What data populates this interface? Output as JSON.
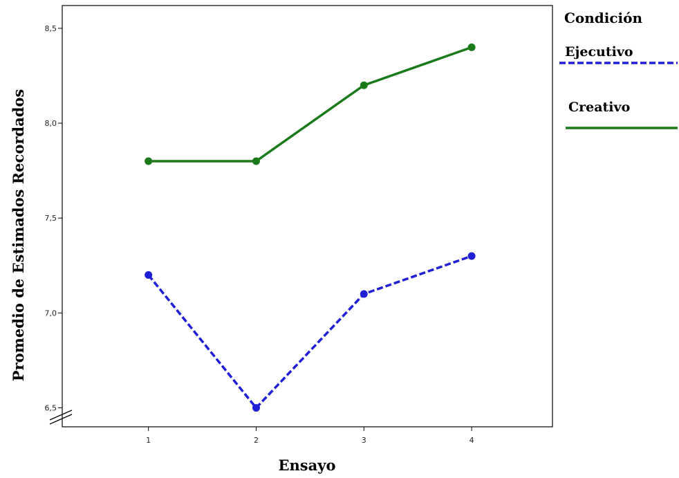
{
  "chart_data": {
    "type": "line",
    "xlabel": "Ensayo",
    "ylabel": "Promedio de Estimados Recordados",
    "x": [
      1,
      2,
      3,
      4
    ],
    "x_tick_labels": [
      "1",
      "2",
      "3",
      "4"
    ],
    "xlim": [
      0.2,
      4.75
    ],
    "ylim": [
      6.4,
      8.62
    ],
    "y_ticks": [
      6.5,
      7.0,
      7.5,
      8.0,
      8.5
    ],
    "y_tick_labels": [
      "6,5",
      "7,0",
      "7,5",
      "8,0",
      "8,5"
    ],
    "y_axis_break": true,
    "grid": false,
    "legend": {
      "title": "Condición",
      "placement": "right"
    },
    "series": [
      {
        "name": "Ejecutivo",
        "values": [
          7.2,
          6.5,
          7.1,
          7.3
        ],
        "color": "#1f1fd6",
        "line_style": "dashed"
      },
      {
        "name": "Creativo",
        "values": [
          7.8,
          7.8,
          8.2,
          8.4
        ],
        "color": "#1a7a1a",
        "line_style": "solid"
      }
    ]
  }
}
